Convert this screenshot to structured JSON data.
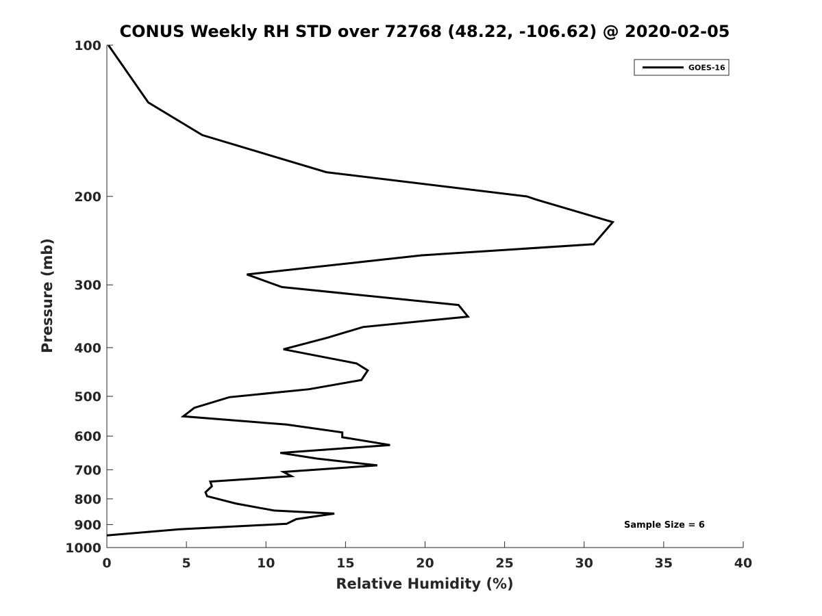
{
  "chart_data": {
    "type": "line",
    "title": "CONUS Weekly RH STD over 72768 (48.22, -106.62) @ 2020-02-05",
    "xlabel": "Relative Humidity (%)",
    "ylabel": "Pressure (mb)",
    "xlim": [
      0,
      40
    ],
    "ylim": [
      100,
      1000
    ],
    "y_scale": "log",
    "y_reversed": true,
    "grid": false,
    "legend_position": "top-right",
    "xticks": [
      "0",
      "5",
      "10",
      "15",
      "20",
      "25",
      "30",
      "35",
      "40"
    ],
    "yticks": [
      "100",
      "200",
      "300",
      "400",
      "500",
      "600",
      "700",
      "800",
      "900",
      "1000"
    ],
    "series": [
      {
        "name": "GOES-16",
        "color": "#000000",
        "x": [
          0.1,
          2.6,
          6.0,
          13.8,
          26.4,
          27.0,
          31.8,
          30.6,
          19.8,
          8.8,
          11.0,
          22.1,
          22.7,
          16.1,
          13.9,
          11.1,
          15.7,
          16.4,
          16.0,
          12.7,
          7.7,
          5.5,
          4.8,
          11.3,
          14.8,
          14.8,
          17.8,
          10.9,
          13.2,
          17.0,
          11.1,
          11.6,
          6.5,
          6.6,
          6.2,
          6.3,
          8.1,
          10.5,
          14.3,
          11.9,
          11.3,
          4.5,
          0.0
        ],
        "y": [
          100,
          130,
          151,
          179,
          200,
          203,
          225,
          249,
          262,
          286,
          303,
          329,
          347,
          364,
          382,
          403,
          430,
          444,
          464,
          484,
          502,
          527,
          548,
          569,
          590,
          603,
          625,
          648,
          665,
          686,
          707,
          721,
          739,
          755,
          776,
          790,
          817,
          844,
          856,
          878,
          897,
          920,
          946
        ]
      }
    ],
    "annotations": [
      "Sample Size = 6"
    ]
  }
}
